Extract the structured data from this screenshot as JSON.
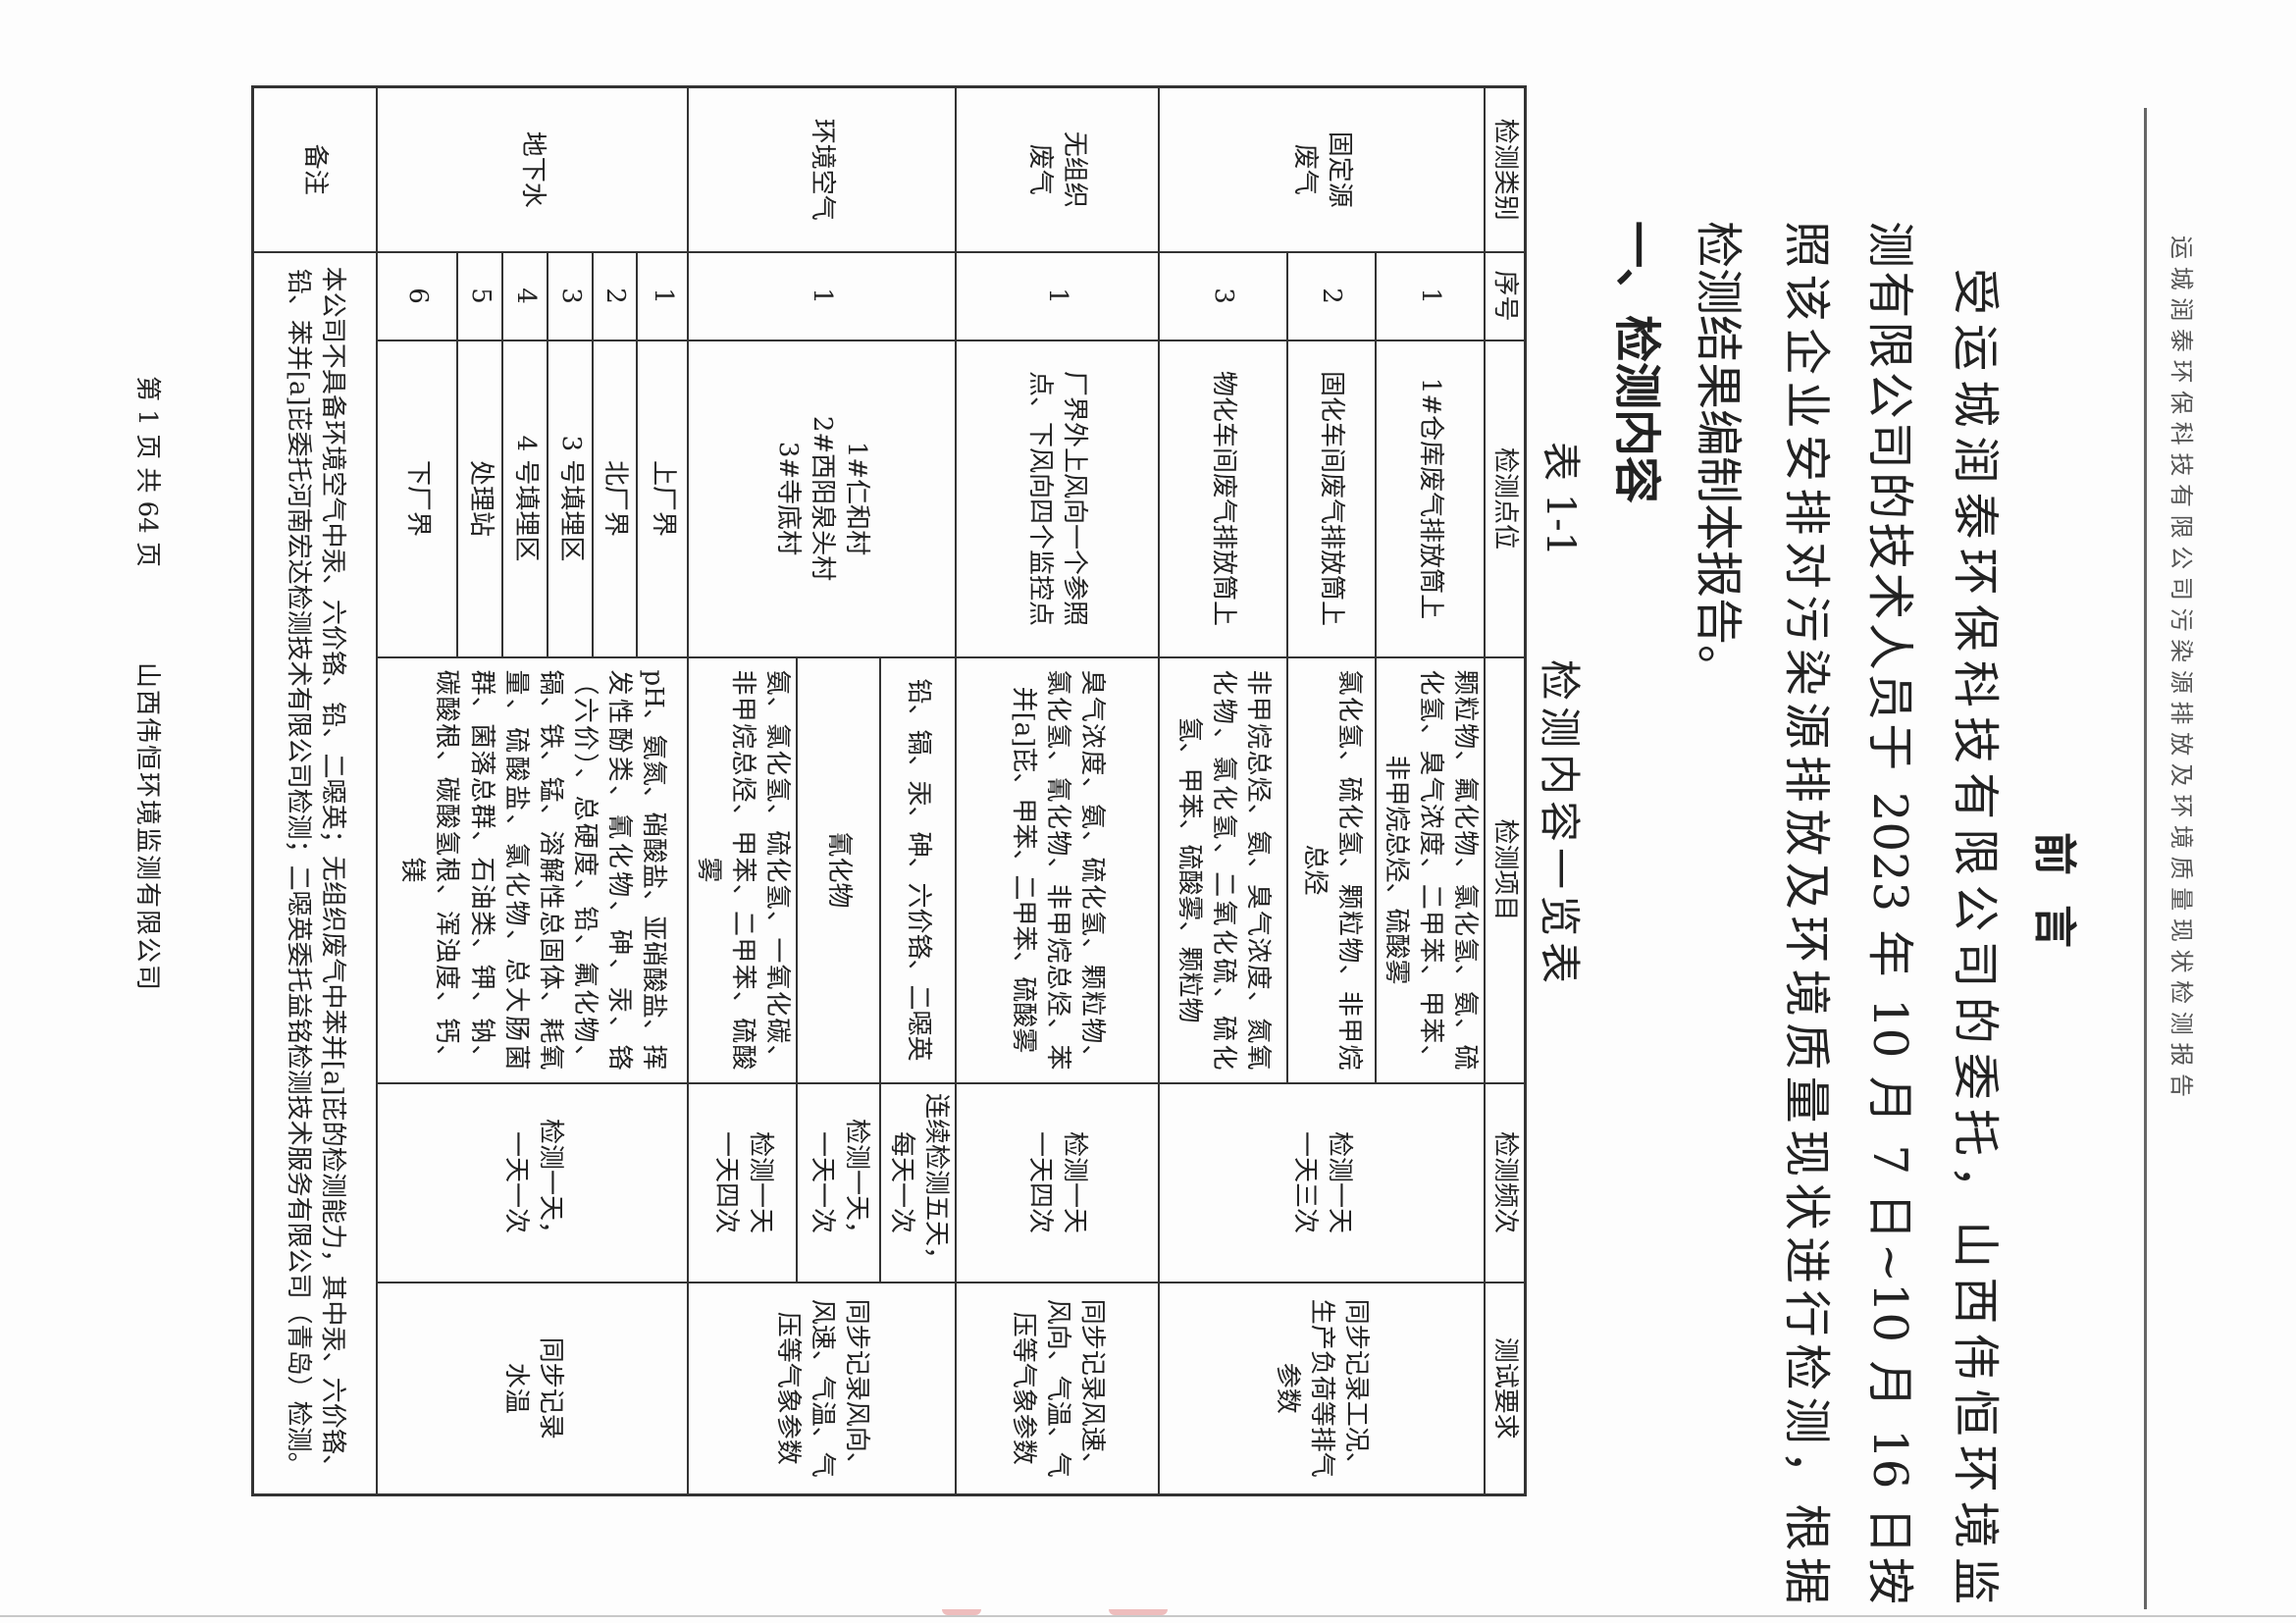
{
  "header": {
    "running_title": "运城润泰环保科技有限公司污染源排放及环境质量现状检测报告"
  },
  "title": "前言",
  "intro": {
    "lines": [
      "受运城润泰环保科技有限公司的委托，山西伟恒环境监",
      "测有限公司的技术人员于 2023 年 10 月 7 日~10 月 16 日按",
      "照该企业安排对污染源排放及环境质量现状进行检测，根据",
      "检测结果编制本报告。"
    ]
  },
  "section": {
    "heading": "一、检测内容",
    "table_number": "表 1-1",
    "table_caption": "检测内容一览表"
  },
  "table": {
    "headers": [
      "检测类别",
      "序号",
      "检测点位",
      "检测项目",
      "检测频次",
      "测试要求"
    ],
    "stationary": {
      "category": "固定源\n废气",
      "rows": [
        {
          "no": "1",
          "point": "1#仓库废气排放筒上",
          "items": "颗粒物、氟化物、氯化氢、氨、硫化氢、臭气浓度、二甲苯、甲苯、非甲烷总烃、硫酸雾"
        },
        {
          "no": "2",
          "point": "固化车间废气排放筒上",
          "items": "氯化氢、硫化氢、颗粒物、非甲烷总烃"
        },
        {
          "no": "3",
          "point": "物化车间废气排放筒上",
          "items": "非甲烷总烃、氨、臭气浓度、氮氧化物、氯化氢、二氧化硫、硫化氢、甲苯、硫酸雾、颗粒物"
        }
      ],
      "frequency": "检测一天\n一天三次",
      "requirement": "同步记录工况、生产负荷等排气参数"
    },
    "fugitive": {
      "category": "无组织\n废气",
      "no": "1",
      "point": "厂界外上风向一个参照点、下风向四个监控点",
      "items": "臭气浓度、氨、硫化氢、颗粒物、氯化氢、氰化物、非甲烷总烃、苯并[a]芘、甲苯、二甲苯、硫酸雾",
      "frequency": "检测一天\n一天四次",
      "requirement": "同步记录风速、风向、气温、气压等气象参数"
    },
    "ambient": {
      "category": "环境空气",
      "no": "1",
      "point": "1#仁和村\n2#西阳泉头村\n3#寺底村",
      "subrows": [
        {
          "items": "铅、镉、汞、砷、六价铬、二噁英",
          "frequency": "连续检测五天，每天一次"
        },
        {
          "items": "氰化物",
          "frequency": "检测一天，\n一天一次"
        },
        {
          "items": "氨、氯化氢、硫化氢、一氧化碳、非甲烷总烃、甲苯、二甲苯、硫酸雾",
          "frequency": "检测一天\n一天四次"
        }
      ],
      "requirement": "同步记录风向、风速、气温、气压等气象参数"
    },
    "groundwater": {
      "category": "地下水",
      "rows": [
        {
          "no": "1",
          "point": "上厂界"
        },
        {
          "no": "2",
          "point": "北厂界"
        },
        {
          "no": "3",
          "point": "3 号填埋区"
        },
        {
          "no": "4",
          "point": "4 号填埋区"
        },
        {
          "no": "5",
          "point": "处理站"
        },
        {
          "no": "6",
          "point": "下厂界"
        }
      ],
      "items": "pH、氨氮、硝酸盐、亚硝酸盐、挥发性酚类、氰化物、砷、汞、铬（六价）、总硬度、铅、氟化物、镉、铁、锰、溶解性总固体、耗氧量、硫酸盐、氯化物、总大肠菌群、菌落总群、石油类、钾、钠、碳酸根、碳酸氢根、浑浊度、钙、镁",
      "frequency": "检测一天，\n一天一次",
      "requirement": "同步记录\n水温"
    },
    "remark_label": "备注",
    "remark": "本公司不具备环境空气中汞、六价铬、铅、二噁英；无组织废气中苯并[a]芘的检测能力，其中汞、六价铬、铅、苯并[a]芘委托河南宏达检测技术有限公司检测；二噁英委托益铭检测技术服务有限公司（青岛）检测。"
  },
  "footer": {
    "page": "第 1 页 共 64 页",
    "company": "山西伟恒环境监测有限公司"
  }
}
